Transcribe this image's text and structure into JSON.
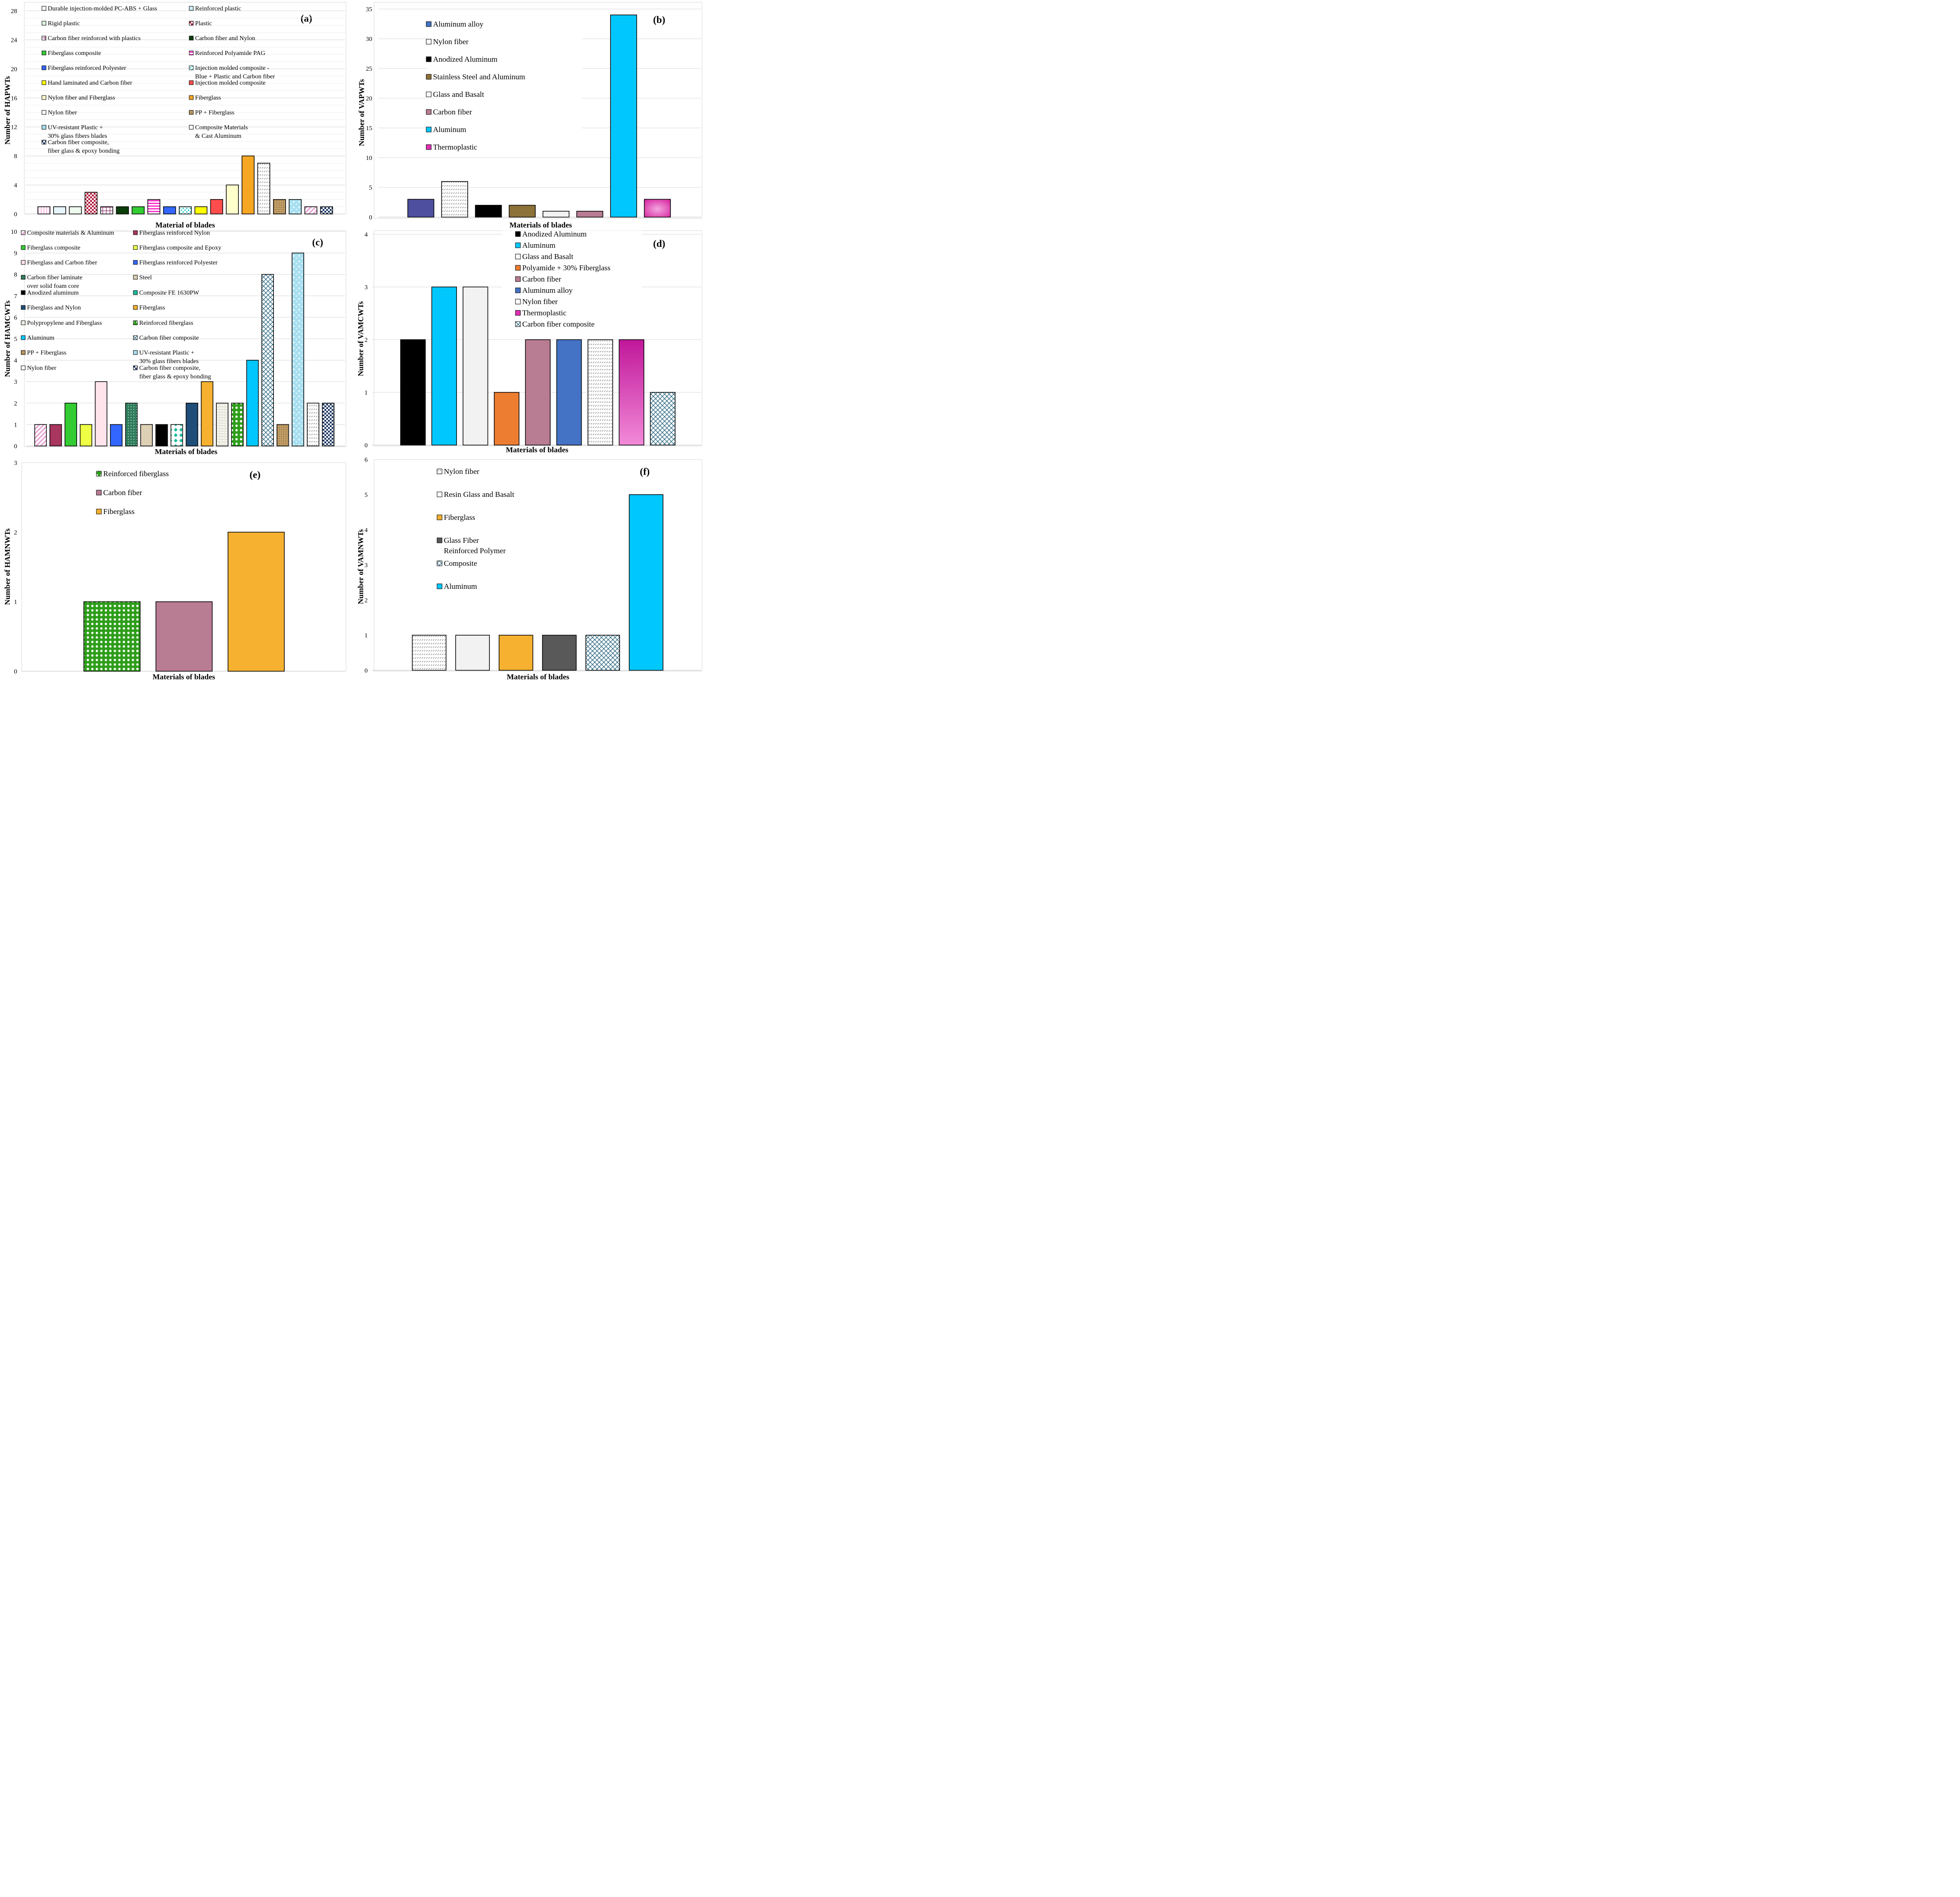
{
  "chart_data": [
    {
      "panel": "(a)",
      "type": "bar",
      "ylabel": "Number of HAPWTs",
      "xlabel": "Material of blades",
      "ylim": [
        0,
        28
      ],
      "yticks": [
        0,
        4,
        8,
        12,
        16,
        20,
        24,
        28
      ],
      "grid": true,
      "categories": [
        "Durable injection-molded PC-ABS + Glass",
        "Reinforced plastic",
        "Rigid plastic",
        "Plastic",
        "Carbon fiber reinforced with plastics",
        "Carbon fiber and Nylon",
        "Fiberglass composite",
        "Reinforced Polyamide PAG",
        "Fiberglass reinforced Polyester",
        "Injection molded composite - Blue + Plastic and Carbon fiber",
        "Hand laminated and Carbon fiber",
        "Injection molded composite",
        "Nylon fiber and Fiberglass",
        "Fiberglass",
        "Nylon fiber",
        "PP + Fiberglass",
        "UV-resistant Plastic + 30% glass fibers blades",
        "Composite Materials & Cast Aluminum",
        "Carbon fiber composite, fiber glass & epoxy bonding"
      ],
      "values": [
        1,
        1,
        1,
        3,
        1,
        1,
        1,
        2,
        1,
        1,
        1,
        2,
        4,
        8,
        7,
        2,
        2,
        1,
        1
      ],
      "colors": [
        "#f6c9e8",
        "#cfeefa",
        "#dff5df",
        "#b0183b",
        "#8a2a6a",
        "#0b3d0b",
        "#33cc33",
        "#ff33cc",
        "#3366ff",
        "#33cccc",
        "#ffff00",
        "#ff4d4d",
        "#ffffcc",
        "#f5a623",
        "#ffffff",
        "#c9a46c",
        "#a8dff0",
        "#e6a0d2",
        "#1f3864"
      ],
      "legend": [
        [
          "Durable injection-molded PC-ABS + Glass"
        ],
        [
          "Reinforced plastic"
        ],
        [
          "Rigid plastic"
        ],
        [
          "Plastic"
        ],
        [
          "Carbon fiber reinforced with plastics"
        ],
        [
          "Carbon fiber and Nylon"
        ],
        [
          "Fiberglass composite"
        ],
        [
          "Reinforced Polyamide PAG"
        ],
        [
          "Fiberglass reinforced Polyester"
        ],
        [
          "Injection molded composite -",
          "Blue + Plastic and Carbon fiber"
        ],
        [
          "Hand laminated and Carbon fiber"
        ],
        [
          "Injection molded composite"
        ],
        [
          "Nylon fiber and Fiberglass"
        ],
        [
          "Fiberglass"
        ],
        [
          "Nylon fiber"
        ],
        [
          "PP + Fiberglass"
        ],
        [
          "UV-resistant Plastic +",
          "30% glass fibers blades"
        ],
        [
          "Composite Materials",
          "& Cast Aluminum"
        ],
        [
          "Carbon fiber composite,",
          "fiber glass & epoxy bonding"
        ]
      ]
    },
    {
      "panel": "(b)",
      "type": "bar",
      "ylabel": "Number of VAPWTs",
      "xlabel": "Materials of blades",
      "ylim": [
        0,
        35
      ],
      "yticks": [
        0,
        5,
        10,
        15,
        20,
        25,
        30,
        35
      ],
      "grid": true,
      "categories": [
        "Aluminum alloy",
        "Nylon fiber",
        "Anodized Aluminum",
        "Stainless Steel and Aluminum",
        "Glass and Basalt",
        "Carbon fiber",
        "Aluminum",
        "Thermoplastic"
      ],
      "values": [
        3,
        6,
        2,
        2,
        1,
        1,
        34,
        3
      ],
      "colors": [
        "#4f4fa0",
        "#ffffff",
        "#000000",
        "#8c7138",
        "#f2f2f2",
        "#b87c93",
        "#00c8ff",
        "#e030b4"
      ],
      "legend": [
        [
          "Aluminum alloy"
        ],
        [
          "Nylon fiber"
        ],
        [
          "Anodized Aluminum"
        ],
        [
          "Stainless Steel and Aluminum"
        ],
        [
          "Glass and Basalt"
        ],
        [
          "Carbon fiber"
        ],
        [
          "Aluminum"
        ],
        [
          "Thermoplastic"
        ]
      ]
    },
    {
      "panel": "(c)",
      "type": "bar",
      "ylabel": "Number of HAMCWTs",
      "xlabel": "Materials of blades",
      "ylim": [
        0,
        10
      ],
      "yticks": [
        0,
        1,
        2,
        3,
        4,
        5,
        6,
        7,
        8,
        9,
        10
      ],
      "grid": true,
      "categories": [
        "Composite materials & Aluminum",
        "Fiberglass reinforced Nylon",
        "Fiberglass composite",
        "Fiberglass composite and Epoxy",
        "Fiberglass and Carbon fiber",
        "Fiberglass reinforced Polyester",
        "Carbon fiber laminate over solid foam core",
        "Steel",
        "Anodized aluminum",
        "Composite FE 1630PW",
        "Fiberglass and Nylon",
        "Fiberglass",
        "Polypropylene and Fiberglass",
        "Reinforced fiberglass",
        "Aluminum",
        "Carbon fiber composite",
        "PP + Fiberglass",
        "UV-resistant Plastic + 30% glass fibers blades",
        "Nylon fiber",
        "Carbon fiber composite, fiber glass & epoxy bonding"
      ],
      "values": [
        1,
        1,
        2,
        1,
        3,
        1,
        2,
        1,
        1,
        1,
        2,
        3,
        2,
        2,
        4,
        8,
        1,
        9,
        2,
        2
      ],
      "colors": [
        "#e6a0d2",
        "#a8365e",
        "#33cc33",
        "#eeff44",
        "#ffe4ec",
        "#3366ff",
        "#2e7d5b",
        "#ddd0b4",
        "#000000",
        "#1abc9c",
        "#1f4e79",
        "#f5b12f",
        "#e8e6d4",
        "#2e9e1a",
        "#00c8ff",
        "#1f5f7a",
        "#c9a46c",
        "#a8dff0",
        "#ffffff",
        "#1f3864"
      ],
      "legend": [
        [
          "Composite materials & Aluminum"
        ],
        [
          "Fiberglass reinforced Nylon"
        ],
        [
          "Fiberglass composite"
        ],
        [
          "Fiberglass composite and Epoxy"
        ],
        [
          "Fiberglass and Carbon fiber"
        ],
        [
          "Fiberglass reinforced Polyester"
        ],
        [
          "Carbon fiber laminate",
          "over solid foam core"
        ],
        [
          "Steel"
        ],
        [
          "Anodized aluminum"
        ],
        [
          "Composite FE 1630PW"
        ],
        [
          "Fiberglass and Nylon"
        ],
        [
          "Fiberglass"
        ],
        [
          "Polypropylene and Fiberglass"
        ],
        [
          "Reinforced fiberglass"
        ],
        [
          "Aluminum"
        ],
        [
          "Carbon fiber composite"
        ],
        [
          "PP + Fiberglass"
        ],
        [
          "UV-resistant Plastic +",
          "30% glass fibers blades"
        ],
        [
          "Nylon fiber"
        ],
        [
          "Carbon fiber composite,",
          "fiber glass & epoxy bonding"
        ]
      ]
    },
    {
      "panel": "(d)",
      "type": "bar",
      "ylabel": "Number of VAMCWTs",
      "xlabel": "Materials of blades",
      "ylim": [
        0,
        4
      ],
      "yticks": [
        0,
        1,
        2,
        3,
        4
      ],
      "grid": true,
      "categories": [
        "Anodized Aluminum",
        "Aluminum",
        "Glass and Basalt",
        "Polyamide + 30% Fiberglass",
        "Carbon fiber",
        "Aluminum alloy",
        "Nylon fiber",
        "Thermoplastic",
        "Carbon fiber composite"
      ],
      "values": [
        2,
        3,
        3,
        1,
        2,
        2,
        2,
        2,
        1
      ],
      "colors": [
        "#000000",
        "#00c8ff",
        "#f2f2f2",
        "#ed7d31",
        "#b87c93",
        "#4472c4",
        "#ffffff",
        "#d42aa8",
        "#1f5f7a"
      ],
      "legend": [
        [
          "Anodized Aluminum"
        ],
        [
          "Aluminum"
        ],
        [
          "Glass and Basalt"
        ],
        [
          "Polyamide + 30% Fiberglass"
        ],
        [
          "Carbon fiber"
        ],
        [
          "Aluminum alloy"
        ],
        [
          "Nylon fiber"
        ],
        [
          "Thermoplastic"
        ],
        [
          "Carbon fiber composite"
        ]
      ]
    },
    {
      "panel": "(e)",
      "type": "bar",
      "ylabel": "Number of HAMNWTs",
      "xlabel": "Materials of blades",
      "ylim": [
        0,
        3
      ],
      "yticks": [
        0,
        1,
        2,
        3
      ],
      "grid": false,
      "categories": [
        "Reinforced fiberglass",
        "Carbon fiber",
        "Fiberglass"
      ],
      "values": [
        1,
        1,
        2
      ],
      "colors": [
        "#2e9e1a",
        "#b87c93",
        "#f5b12f"
      ],
      "legend": [
        [
          "Reinforced fiberglass"
        ],
        [
          "Carbon fiber"
        ],
        [
          "Fiberglass"
        ]
      ]
    },
    {
      "panel": "(f)",
      "type": "bar",
      "ylabel": "Number of VAMNWTs",
      "xlabel": "Materials of blades",
      "ylim": [
        0,
        6
      ],
      "yticks": [
        0,
        1,
        2,
        3,
        4,
        5,
        6
      ],
      "grid": false,
      "categories": [
        "Nylon fiber",
        "Resin Glass and Basalt",
        "Fiberglass",
        "Glass Fiber Reinforced Polymer",
        "Composite",
        "Aluminum"
      ],
      "values": [
        1,
        1,
        1,
        1,
        1,
        5
      ],
      "colors": [
        "#ffffff",
        "#f2f2f2",
        "#f5b12f",
        "#595959",
        "#1f5f7a",
        "#00c8ff"
      ],
      "legend": [
        [
          "Nylon fiber"
        ],
        [
          "Resin Glass and Basalt"
        ],
        [
          "Fiberglass"
        ],
        [
          "Glass Fiber",
          "Reinforced Polymer"
        ],
        [
          "Composite"
        ],
        [
          "Aluminum"
        ]
      ]
    }
  ]
}
